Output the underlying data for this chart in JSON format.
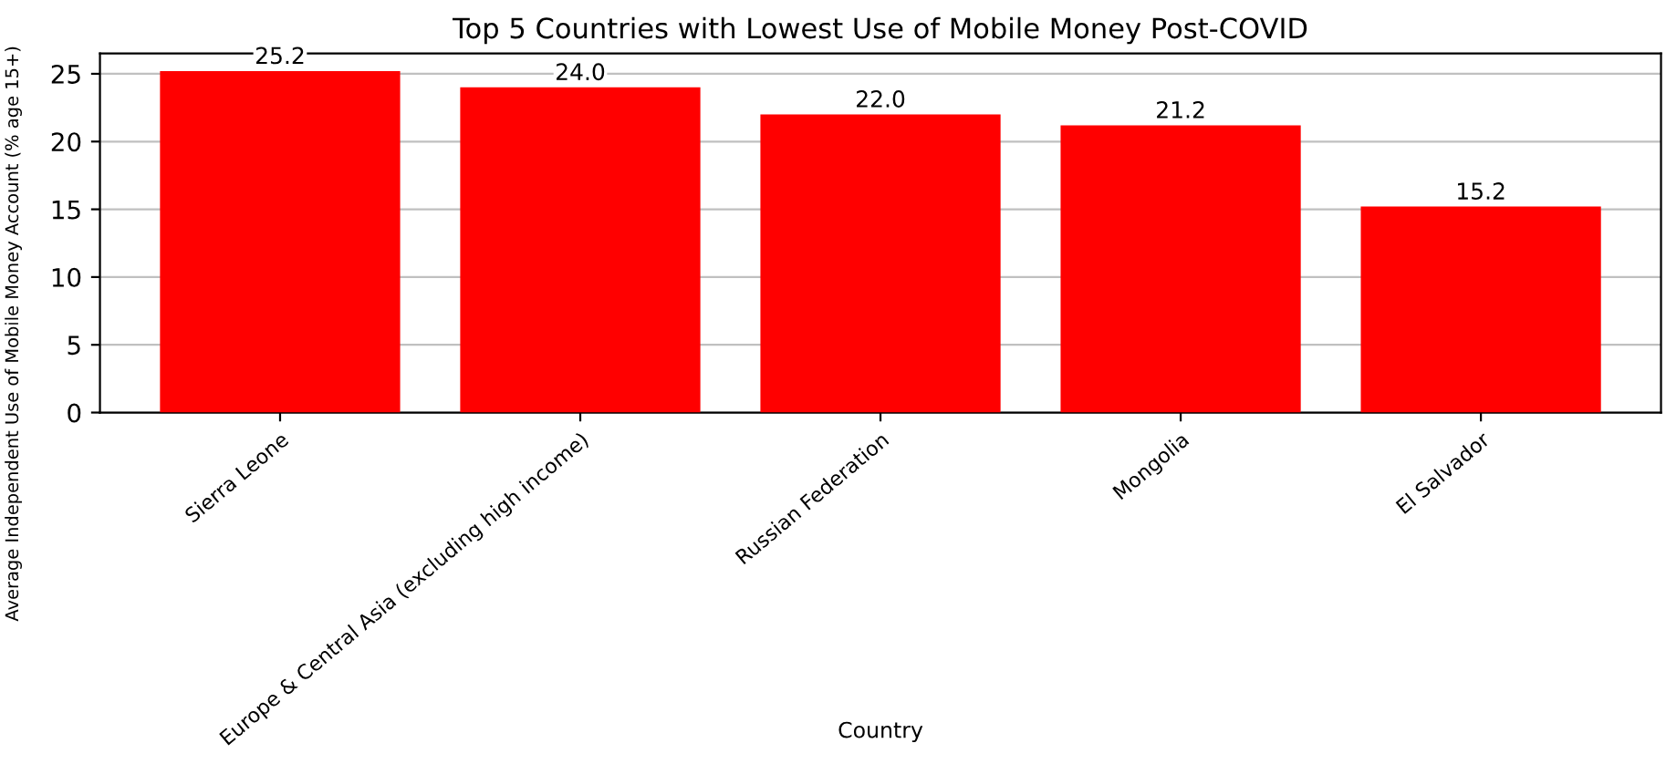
{
  "chart_data": {
    "type": "bar",
    "title": "Top 5 Countries with Lowest Use of Mobile Money Post-COVID",
    "xlabel": "Country",
    "ylabel": "Average Independent Use of Mobile Money Account (% age 15+)",
    "categories": [
      "Sierra Leone",
      "Europe & Central Asia (excluding high income)",
      "Russian Federation",
      "Mongolia",
      "El Salvador"
    ],
    "values": [
      25.2,
      24.0,
      22.0,
      21.2,
      15.2
    ],
    "value_labels": [
      "25.2",
      "24.0",
      "22.0",
      "21.2",
      "15.2"
    ],
    "color": "#ff0000",
    "ylim": [
      0,
      26.5
    ],
    "yticks": [
      0,
      5,
      10,
      15,
      20,
      25
    ],
    "grid": "y"
  }
}
